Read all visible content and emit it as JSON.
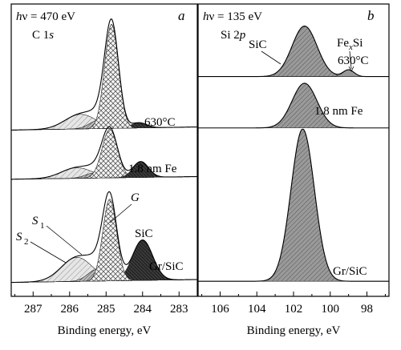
{
  "panels": [
    {
      "id": "a",
      "letter": "a",
      "photon_energy": "hν = 470 eV",
      "core_level": "C 1s",
      "xlabel": "Binding energy, eV",
      "ticks": [
        "287",
        "286",
        "285",
        "284",
        "283"
      ],
      "spectra": [
        {
          "label": "630°C"
        },
        {
          "label": "1.8 nm Fe"
        },
        {
          "label": "Gr/SiC"
        }
      ],
      "component_labels": [
        "S1",
        "S2",
        "G",
        "SiC"
      ]
    },
    {
      "id": "b",
      "letter": "b",
      "photon_energy": "hν = 135 eV",
      "core_level": "Si 2p",
      "xlabel": "Binding energy, eV",
      "ticks": [
        "106",
        "104",
        "102",
        "100",
        "98"
      ],
      "spectra": [
        {
          "label": "630°C"
        },
        {
          "label": "1.8 nm Fe"
        },
        {
          "label": "Gr/SiC"
        }
      ],
      "component_labels": [
        "SiC",
        "FexSi"
      ]
    }
  ],
  "chart_data": [
    {
      "type": "line",
      "panel": "a",
      "title": "C 1s",
      "xlabel": "Binding energy, eV",
      "ylabel": "",
      "xlim": [
        287.6,
        282.5
      ],
      "x_reversed": true,
      "series": [
        {
          "name": "630°C",
          "components": [
            {
              "name": "G",
              "center": 284.85,
              "fwhm": 0.45,
              "height": 1.0,
              "fill": "crosshatch"
            },
            {
              "name": "S2",
              "center": 285.7,
              "fwhm": 1.0,
              "height": 0.14,
              "fill": "hatch-light"
            },
            {
              "name": "S1",
              "center": 285.2,
              "fwhm": 0.6,
              "height": 0.08,
              "fill": "hatch-dense"
            },
            {
              "name": "SiC",
              "center": 284.1,
              "fwhm": 0.5,
              "height": 0.05,
              "fill": "dark"
            }
          ]
        },
        {
          "name": "1.8 nm Fe",
          "components": [
            {
              "name": "G",
              "center": 284.9,
              "fwhm": 0.5,
              "height": 0.55,
              "fill": "crosshatch"
            },
            {
              "name": "S2",
              "center": 285.8,
              "fwhm": 1.0,
              "height": 0.12,
              "fill": "hatch-light"
            },
            {
              "name": "S1",
              "center": 285.3,
              "fwhm": 0.6,
              "height": 0.06,
              "fill": "hatch-dense"
            },
            {
              "name": "SiC",
              "center": 284.05,
              "fwhm": 0.5,
              "height": 0.18,
              "fill": "dark"
            }
          ]
        },
        {
          "name": "Gr/SiC",
          "components": [
            {
              "name": "G",
              "center": 284.9,
              "fwhm": 0.45,
              "height": 0.85,
              "fill": "crosshatch"
            },
            {
              "name": "S2",
              "center": 285.8,
              "fwhm": 1.0,
              "height": 0.25,
              "fill": "hatch-light"
            },
            {
              "name": "S1",
              "center": 285.25,
              "fwhm": 0.6,
              "height": 0.12,
              "fill": "hatch-dense"
            },
            {
              "name": "SiC",
              "center": 284.0,
              "fwhm": 0.65,
              "height": 0.42,
              "fill": "dark"
            }
          ]
        }
      ]
    },
    {
      "type": "line",
      "panel": "b",
      "title": "Si 2p",
      "xlabel": "Binding energy, eV",
      "ylabel": "",
      "xlim": [
        107.2,
        96.8
      ],
      "x_reversed": true,
      "series": [
        {
          "name": "630°C",
          "components": [
            {
              "name": "SiC",
              "center": 101.4,
              "fwhm": 1.6,
              "height": 0.9,
              "fill": "hatch-medium"
            },
            {
              "name": "FexSi",
              "center": 99.0,
              "fwhm": 0.7,
              "height": 0.12,
              "fill": "gray"
            }
          ]
        },
        {
          "name": "1.8 nm Fe",
          "components": [
            {
              "name": "SiC",
              "center": 101.4,
              "fwhm": 1.6,
              "height": 0.9,
              "fill": "hatch-medium"
            }
          ]
        },
        {
          "name": "Gr/SiC",
          "components": [
            {
              "name": "SiC",
              "center": 101.5,
              "fwhm": 1.5,
              "height": 1.0,
              "fill": "hatch-medium"
            }
          ]
        }
      ]
    }
  ]
}
